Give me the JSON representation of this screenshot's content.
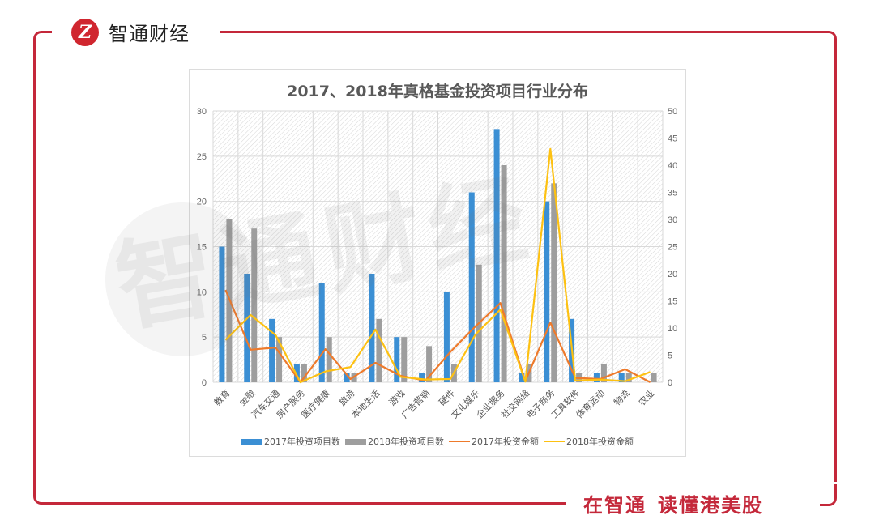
{
  "brand": {
    "logo_glyph": "Z",
    "name": "智通财经",
    "slogan_part1": "在智通",
    "slogan_part2": "读懂港美股",
    "frame_color": "#c4283a"
  },
  "watermark": "智通财经",
  "chart_data": {
    "type": "bar+line",
    "title": "2017、2018年真格基金投资项目行业分布",
    "categories": [
      "教育",
      "金融",
      "汽车交通",
      "房产服务",
      "医疗健康",
      "旅游",
      "本地生活",
      "游戏",
      "广告营销",
      "硬件",
      "文化娱乐",
      "企业服务",
      "社交网络",
      "电子商务",
      "工具软件",
      "体育运动",
      "物流",
      "农业"
    ],
    "series": [
      {
        "name": "2017年投资项目数",
        "type": "bar",
        "axis": "left",
        "color": "#3b8fd4",
        "values": [
          15,
          12,
          7,
          2,
          11,
          1,
          12,
          5,
          1,
          10,
          21,
          28,
          1,
          20,
          7,
          1,
          1,
          0
        ]
      },
      {
        "name": "2018年投资项目数",
        "type": "bar",
        "axis": "left",
        "color": "#9e9e9e",
        "values": [
          18,
          17,
          5,
          2,
          5,
          1,
          7,
          5,
          4,
          2,
          13,
          24,
          2,
          22,
          1,
          2,
          1,
          1
        ]
      },
      {
        "name": "2017年投资金额",
        "type": "line",
        "axis": "right",
        "color": "#ee7a2b",
        "values": [
          17,
          6,
          6.4,
          0,
          6.1,
          0.6,
          3.6,
          1.2,
          0.3,
          5.6,
          10.3,
          14.6,
          0.2,
          11,
          0.8,
          0.6,
          2.4,
          0
        ]
      },
      {
        "name": "2018年投资金额",
        "type": "line",
        "axis": "right",
        "color": "#fdc112",
        "values": [
          7.8,
          12.4,
          8.7,
          0,
          2,
          2.8,
          9.7,
          1,
          0.5,
          0.6,
          8.8,
          13.4,
          0.1,
          43,
          0.3,
          0.5,
          0.2,
          1.9
        ]
      }
    ],
    "y_left": {
      "min": 0,
      "max": 30,
      "step": 5,
      "ticks": [
        "0",
        "5",
        "10",
        "15",
        "20",
        "25",
        "30"
      ]
    },
    "y_right": {
      "min": 0,
      "max": 50,
      "step": 5,
      "ticks": [
        "0",
        "5",
        "10",
        "15",
        "20",
        "25",
        "30",
        "35",
        "40",
        "45",
        "50"
      ]
    },
    "xlabel": "",
    "ylabel": "",
    "grid": true,
    "legend_position": "bottom"
  }
}
